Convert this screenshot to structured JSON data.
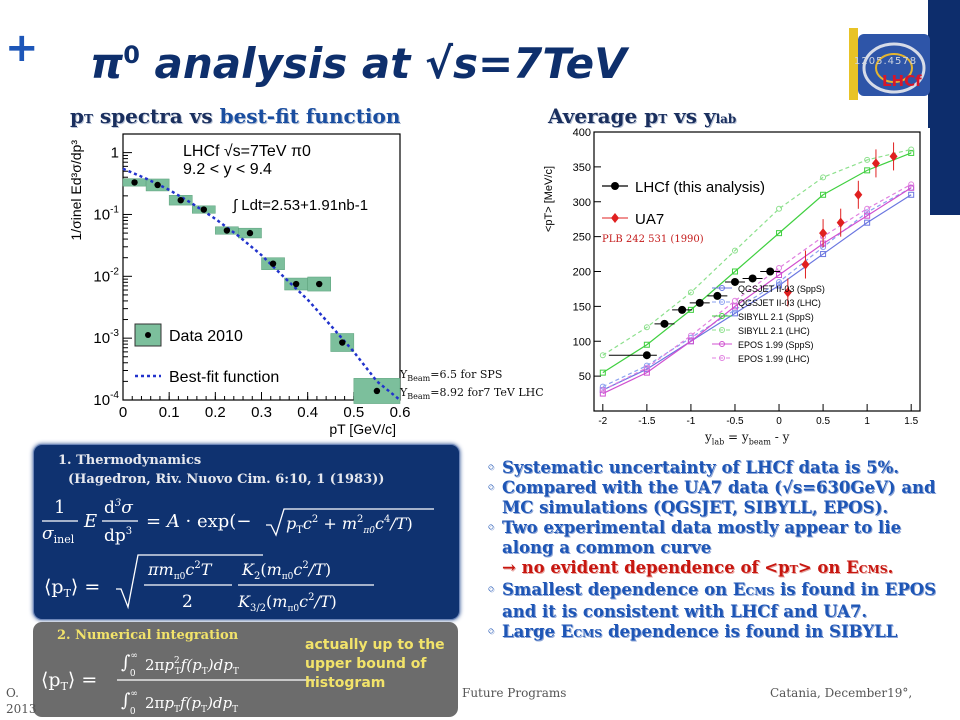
{
  "header": {
    "plus": "+",
    "title": "π0 analysis at √s=7TeV",
    "title_main": "π",
    "title_sup": "0",
    "title_rest": " analysis at √s=7TeV",
    "logo_number": "1205.4578",
    "logo_text": "LHCf"
  },
  "left_panel": {
    "subtitle_p": "p",
    "subtitle_T": "T",
    "subtitle_rest": " spectra vs ",
    "subtitle_hl": "best-fit function"
  },
  "right_panel": {
    "subtitle_a": "Average p",
    "subtitle_T": "T",
    "subtitle_b": " vs y",
    "subtitle_lab": "lab"
  },
  "annotations": {
    "ybeam_sps": "=6.5 for SPS",
    "ybeam_lhc": "=8.92 for7 TeV LHC",
    "ybeam_Y": "Y",
    "ybeam_sub": "Beam",
    "xlabel_r": "y",
    "xlabel_r_lab": "lab",
    "xlabel_r_mid": " = y",
    "xlabel_r_beam": "beam",
    "xlabel_r_end": " - y",
    "plb": "PLB 242 531 (1990)"
  },
  "thermo_box": {
    "title1": "1. Thermodynamics",
    "title2": "(Hagedron, Riv. Nuovo Cim. 6:10, 1 (1983))"
  },
  "numeric_box": {
    "title": "2. Numerical integration",
    "note": "actually up to the upper bound of histogram"
  },
  "bullets": {
    "b1": "Systematic uncertainty of LHCf data is 5%.",
    "b2": "Compared with the UA7 data (√s=630GeV) and MC simulations (QGSJET, SIBYLL, EPOS).",
    "b3": "Two experimental data mostly appear to lie along a common curve",
    "b3_arrow_a": "→ no evident dependence of <p",
    "b3_arrow_T": "T",
    "b3_arrow_b": "> on E",
    "b3_arrow_cms": "CMS",
    "b3_arrow_c": ".",
    "b4_a": "Smallest dependence on E",
    "b4_cms": "CMS",
    "b4_b": " is found in EPOS and it is consistent with LHCf and UA7.",
    "b5_a": "Large E",
    "b5_cms": "CMS",
    "b5_b": " dependence is found in SIBYLL"
  },
  "footer": {
    "left": "O.",
    "left2": "2013",
    "center": "Future Programs",
    "right": "Catania, December19°,"
  },
  "colors": {
    "title": "#0e2f6c",
    "accent_blue": "#1e56b6",
    "box_blue": "#0f3270",
    "box_grey": "#6c6c6c",
    "arrow_red": "#c7160f",
    "hist_green": "#7cbf9c",
    "fit_blue": "#2233cc"
  },
  "chart_data": [
    {
      "type": "scatter",
      "title": "",
      "xlabel": "pT [GeV/c]",
      "ylabel": "1/σinel Ed³σ/dp³",
      "yscale": "log",
      "xlim": [
        0,
        0.6
      ],
      "ylim": [
        0.0001,
        2
      ],
      "xticks": [
        "0",
        "0.1",
        "0.2",
        "0.3",
        "0.4",
        "0.5",
        "0.6"
      ],
      "yticks": [
        "10-4",
        "10-3",
        "10-2",
        "10-1",
        "1"
      ],
      "inset_text": [
        "LHCf √s=7TeV π0",
        "9.2 < y < 9.4",
        "∫ Ldt=2.53+1.91nb-1"
      ],
      "legend": [
        "Data 2010",
        "Best-fit function"
      ],
      "legend_position": "bottom-left",
      "series": [
        {
          "name": "Data 2010",
          "x": [
            0.025,
            0.075,
            0.125,
            0.175,
            0.225,
            0.275,
            0.325,
            0.375,
            0.425,
            0.475,
            0.55
          ],
          "y": [
            0.33,
            0.3,
            0.17,
            0.12,
            0.055,
            0.05,
            0.016,
            0.0075,
            0.0075,
            0.00085,
            0.00014
          ],
          "box_halfwidth": [
            0.025,
            0.025,
            0.025,
            0.025,
            0.025,
            0.025,
            0.025,
            0.025,
            0.025,
            0.025,
            0.05
          ],
          "box_rel_h": [
            1.15,
            1.25,
            1.2,
            1.15,
            1.15,
            1.2,
            1.25,
            1.25,
            1.3,
            1.4,
            1.6
          ]
        },
        {
          "name": "Best-fit function",
          "x": [
            0,
            0.05,
            0.1,
            0.15,
            0.2,
            0.25,
            0.3,
            0.35,
            0.4,
            0.45,
            0.5,
            0.55,
            0.6
          ],
          "y": [
            0.55,
            0.38,
            0.25,
            0.15,
            0.085,
            0.045,
            0.022,
            0.0095,
            0.0042,
            0.0016,
            0.0006,
            0.0002,
            7e-05
          ]
        }
      ]
    },
    {
      "type": "line",
      "title": "",
      "xlabel": "ylab = ybeam - y",
      "ylabel": "<pT> [MeV/c]",
      "xlim": [
        -2.1,
        1.6
      ],
      "ylim": [
        0,
        400
      ],
      "xticks": [
        "-2",
        "-1.5",
        "-1",
        "-0.5",
        "0",
        "0.5",
        "1",
        "1.5"
      ],
      "yticks": [
        "50",
        "100",
        "150",
        "200",
        "250",
        "300",
        "350",
        "400"
      ],
      "legend_position": "top-left",
      "series": [
        {
          "name": "LHCf (this analysis)",
          "color": "#000000",
          "marker": "circle",
          "x": [
            -1.5,
            -1.3,
            -1.1,
            -0.9,
            -0.7,
            -0.5,
            -0.3,
            -0.1
          ],
          "y": [
            80,
            125,
            145,
            155,
            165,
            185,
            190,
            200
          ]
        },
        {
          "name": "UA7",
          "color": "#e02020",
          "marker": "diamond",
          "x": [
            0.1,
            0.3,
            0.5,
            0.7,
            0.9,
            1.1,
            1.3
          ],
          "y": [
            170,
            210,
            255,
            270,
            310,
            355,
            365
          ]
        },
        {
          "name": "QGSJET II-03 (SppS)",
          "color": "#6a76e0",
          "x": [
            -2,
            -1.5,
            -1,
            -0.5,
            0,
            0.5,
            1,
            1.5
          ],
          "y": [
            30,
            60,
            100,
            140,
            180,
            225,
            270,
            310
          ]
        },
        {
          "name": "QGSJET II-03 (LHC)",
          "color": "#8aa0f0",
          "x": [
            -2,
            -1.5,
            -1,
            -0.5,
            0,
            0.5,
            1,
            1.5
          ],
          "y": [
            35,
            65,
            105,
            145,
            185,
            235,
            285,
            320
          ]
        },
        {
          "name": "SIBYLL 2.1 (SppS)",
          "color": "#40d040",
          "x": [
            -2,
            -1.5,
            -1,
            -0.5,
            0,
            0.5,
            1,
            1.5
          ],
          "y": [
            55,
            95,
            145,
            200,
            255,
            310,
            345,
            370
          ]
        },
        {
          "name": "SIBYLL 2.1 (LHC)",
          "color": "#8ce08c",
          "x": [
            -2,
            -1.5,
            -1,
            -0.5,
            0,
            0.5,
            1,
            1.5
          ],
          "y": [
            80,
            120,
            170,
            230,
            290,
            335,
            360,
            375
          ]
        },
        {
          "name": "EPOS 1.99 (SppS)",
          "color": "#d050d0",
          "x": [
            -2,
            -1.5,
            -1,
            -0.5,
            0,
            0.5,
            1,
            1.5
          ],
          "y": [
            25,
            55,
            100,
            150,
            195,
            240,
            280,
            320
          ]
        },
        {
          "name": "EPOS 1.99 (LHC)",
          "color": "#e080e0",
          "x": [
            -2,
            -1.5,
            -1,
            -0.5,
            0,
            0.5,
            1,
            1.5
          ],
          "y": [
            30,
            62,
            108,
            158,
            205,
            250,
            290,
            325
          ]
        }
      ]
    }
  ]
}
